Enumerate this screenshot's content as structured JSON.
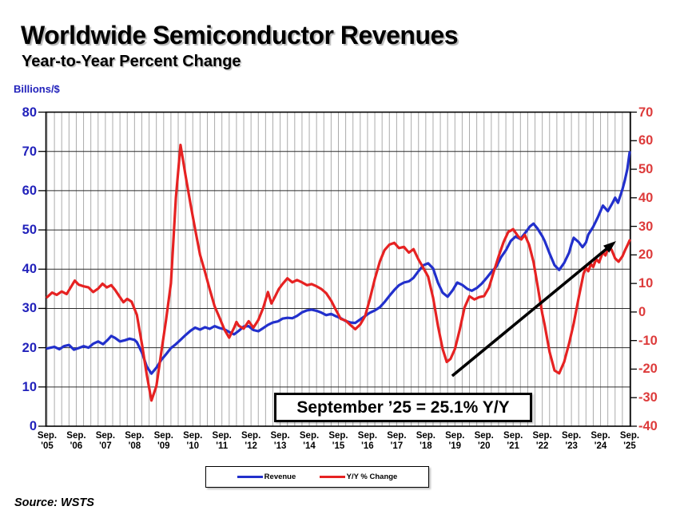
{
  "header": {
    "title": "Worldwide Semiconductor Revenues",
    "subtitle": "Year-to-Year Percent Change"
  },
  "footer": {
    "source": "Source: WSTS"
  },
  "legend": {
    "items": [
      {
        "label": "Revenue",
        "color": "#2230CC"
      },
      {
        "label": "Y/Y % Change",
        "color": "#E62222"
      }
    ]
  },
  "annotation": {
    "text": "September ’25 = 25.1% Y/Y"
  },
  "chart_data": {
    "type": "line",
    "title": "Worldwide Semiconductor Revenues",
    "subtitle": "Year-to-Year Percent Change",
    "grid": "quarterly vertical gray lines, horizontal black lines every 10",
    "left_axis": {
      "unit": "Billions/$",
      "range": [
        0,
        80
      ],
      "ticks": [
        0,
        10,
        20,
        30,
        40,
        50,
        60,
        70,
        80
      ],
      "color": "#2222BB"
    },
    "right_axis": {
      "range": [
        -40,
        70
      ],
      "ticks": [
        70,
        60,
        50,
        40,
        30,
        20,
        10,
        0,
        -10,
        -20,
        -30,
        -40
      ],
      "color": "#DD3B3B"
    },
    "x_axis": {
      "ticks": [
        {
          "m": "Sep.",
          "y": "'05"
        },
        {
          "m": "Sep.",
          "y": "'06"
        },
        {
          "m": "Sep.",
          "y": "'07"
        },
        {
          "m": "Sep.",
          "y": "'08"
        },
        {
          "m": "Sep.",
          "y": "'09"
        },
        {
          "m": "Sep.",
          "y": "'10"
        },
        {
          "m": "Sep.",
          "y": "'11"
        },
        {
          "m": "Sep.",
          "y": "'12"
        },
        {
          "m": "Sep.",
          "y": "'13"
        },
        {
          "m": "Sep.",
          "y": "'14"
        },
        {
          "m": "Sep.",
          "y": "'15"
        },
        {
          "m": "Sep.",
          "y": "'16"
        },
        {
          "m": "Sep.",
          "y": "'17"
        },
        {
          "m": "Sep.",
          "y": "'18"
        },
        {
          "m": "Sep.",
          "y": "'19"
        },
        {
          "m": "Sep.",
          "y": "'20"
        },
        {
          "m": "Sep.",
          "y": "'21"
        },
        {
          "m": "Sep.",
          "y": "'22"
        },
        {
          "m": "Sep.",
          "y": "'23"
        },
        {
          "m": "Sep.",
          "y": "'24"
        },
        {
          "m": "Sep.",
          "y": "'25"
        }
      ]
    },
    "series": [
      {
        "name": "Revenue",
        "axis": "left",
        "color": "#2230CC",
        "points": [
          [
            0,
            19.8
          ],
          [
            0.25,
            20.2
          ],
          [
            0.42,
            19.6
          ],
          [
            0.58,
            20.4
          ],
          [
            0.75,
            20.7
          ],
          [
            0.92,
            19.5
          ],
          [
            1.08,
            19.9
          ],
          [
            1.25,
            20.4
          ],
          [
            1.42,
            20.0
          ],
          [
            1.58,
            21.0
          ],
          [
            1.75,
            21.6
          ],
          [
            1.92,
            20.9
          ],
          [
            2.08,
            22.0
          ],
          [
            2.2,
            23.0
          ],
          [
            2.33,
            22.5
          ],
          [
            2.5,
            21.6
          ],
          [
            2.67,
            21.9
          ],
          [
            2.83,
            22.3
          ],
          [
            3.0,
            22.0
          ],
          [
            3.08,
            21.4
          ],
          [
            3.25,
            18.8
          ],
          [
            3.42,
            15.2
          ],
          [
            3.58,
            13.4
          ],
          [
            3.75,
            14.9
          ],
          [
            3.92,
            16.9
          ],
          [
            4.08,
            18.3
          ],
          [
            4.25,
            19.9
          ],
          [
            4.42,
            20.9
          ],
          [
            4.58,
            22.0
          ],
          [
            4.75,
            23.2
          ],
          [
            4.92,
            24.3
          ],
          [
            5.08,
            25.1
          ],
          [
            5.25,
            24.6
          ],
          [
            5.42,
            25.2
          ],
          [
            5.58,
            24.8
          ],
          [
            5.75,
            25.5
          ],
          [
            5.92,
            25.0
          ],
          [
            6.08,
            24.7
          ],
          [
            6.25,
            24.0
          ],
          [
            6.42,
            23.4
          ],
          [
            6.58,
            24.3
          ],
          [
            6.75,
            25.4
          ],
          [
            6.92,
            25.5
          ],
          [
            7.08,
            24.5
          ],
          [
            7.25,
            24.2
          ],
          [
            7.42,
            25.0
          ],
          [
            7.58,
            25.8
          ],
          [
            7.75,
            26.4
          ],
          [
            7.92,
            26.7
          ],
          [
            8.08,
            27.4
          ],
          [
            8.25,
            27.6
          ],
          [
            8.42,
            27.5
          ],
          [
            8.58,
            28.1
          ],
          [
            8.75,
            29.0
          ],
          [
            8.92,
            29.5
          ],
          [
            9.08,
            29.7
          ],
          [
            9.25,
            29.4
          ],
          [
            9.42,
            28.9
          ],
          [
            9.58,
            28.3
          ],
          [
            9.75,
            28.6
          ],
          [
            9.92,
            28.0
          ],
          [
            10.08,
            27.5
          ],
          [
            10.25,
            26.8
          ],
          [
            10.42,
            26.4
          ],
          [
            10.58,
            26.3
          ],
          [
            10.75,
            27.2
          ],
          [
            10.92,
            28.1
          ],
          [
            11.08,
            28.9
          ],
          [
            11.25,
            29.5
          ],
          [
            11.42,
            30.3
          ],
          [
            11.58,
            31.6
          ],
          [
            11.75,
            33.2
          ],
          [
            11.92,
            34.7
          ],
          [
            12.08,
            35.9
          ],
          [
            12.25,
            36.6
          ],
          [
            12.42,
            36.9
          ],
          [
            12.58,
            37.8
          ],
          [
            12.75,
            39.5
          ],
          [
            12.92,
            41.0
          ],
          [
            13.08,
            41.5
          ],
          [
            13.25,
            40.2
          ],
          [
            13.42,
            36.5
          ],
          [
            13.58,
            34.0
          ],
          [
            13.75,
            33.0
          ],
          [
            13.92,
            34.6
          ],
          [
            14.08,
            36.6
          ],
          [
            14.25,
            36.0
          ],
          [
            14.42,
            35.0
          ],
          [
            14.58,
            34.5
          ],
          [
            14.75,
            35.2
          ],
          [
            14.92,
            36.3
          ],
          [
            15.08,
            37.7
          ],
          [
            15.25,
            39.3
          ],
          [
            15.42,
            40.6
          ],
          [
            15.58,
            43.0
          ],
          [
            15.75,
            44.8
          ],
          [
            15.92,
            47.2
          ],
          [
            16.08,
            48.3
          ],
          [
            16.25,
            47.7
          ],
          [
            16.42,
            49.3
          ],
          [
            16.58,
            50.9
          ],
          [
            16.7,
            51.6
          ],
          [
            16.83,
            50.4
          ],
          [
            17.0,
            48.4
          ],
          [
            17.08,
            47.2
          ],
          [
            17.25,
            44.0
          ],
          [
            17.42,
            41.0
          ],
          [
            17.58,
            39.8
          ],
          [
            17.75,
            41.6
          ],
          [
            17.92,
            44.2
          ],
          [
            18.0,
            46.3
          ],
          [
            18.08,
            48.0
          ],
          [
            18.25,
            46.9
          ],
          [
            18.38,
            45.6
          ],
          [
            18.5,
            46.8
          ],
          [
            18.58,
            48.8
          ],
          [
            18.75,
            50.8
          ],
          [
            18.92,
            53.4
          ],
          [
            19.08,
            56.2
          ],
          [
            19.25,
            54.8
          ],
          [
            19.42,
            57.0
          ],
          [
            19.5,
            58.2
          ],
          [
            19.6,
            56.9
          ],
          [
            19.75,
            60.3
          ],
          [
            19.83,
            62.5
          ],
          [
            19.92,
            65.5
          ],
          [
            20,
            69.8
          ]
        ]
      },
      {
        "name": "Y/Y % Change",
        "axis": "right",
        "color": "#E62222",
        "points": [
          [
            0,
            5.2
          ],
          [
            0.17,
            6.8
          ],
          [
            0.33,
            6.0
          ],
          [
            0.5,
            7.2
          ],
          [
            0.67,
            6.3
          ],
          [
            0.83,
            9.0
          ],
          [
            0.95,
            11.0
          ],
          [
            1.08,
            9.6
          ],
          [
            1.25,
            9.0
          ],
          [
            1.42,
            8.6
          ],
          [
            1.58,
            7.0
          ],
          [
            1.75,
            8.2
          ],
          [
            1.9,
            9.9
          ],
          [
            2.05,
            8.6
          ],
          [
            2.2,
            9.4
          ],
          [
            2.33,
            7.8
          ],
          [
            2.5,
            5.2
          ],
          [
            2.62,
            3.4
          ],
          [
            2.75,
            4.6
          ],
          [
            2.9,
            3.6
          ],
          [
            3.08,
            -1.0
          ],
          [
            3.25,
            -11.0
          ],
          [
            3.42,
            -22.0
          ],
          [
            3.58,
            -31.0
          ],
          [
            3.75,
            -26.0
          ],
          [
            3.92,
            -14.0
          ],
          [
            4.08,
            -3.0
          ],
          [
            4.25,
            10.0
          ],
          [
            4.42,
            40.0
          ],
          [
            4.58,
            58.5
          ],
          [
            4.75,
            48.0
          ],
          [
            4.92,
            38.0
          ],
          [
            5.08,
            29.0
          ],
          [
            5.25,
            20.0
          ],
          [
            5.42,
            14.0
          ],
          [
            5.58,
            8.0
          ],
          [
            5.75,
            2.0
          ],
          [
            5.92,
            -2.0
          ],
          [
            6.08,
            -6.0
          ],
          [
            6.25,
            -9.0
          ],
          [
            6.42,
            -5.5
          ],
          [
            6.5,
            -3.5
          ],
          [
            6.58,
            -4.8
          ],
          [
            6.75,
            -5.8
          ],
          [
            6.92,
            -3.2
          ],
          [
            7.08,
            -5.5
          ],
          [
            7.25,
            -2.8
          ],
          [
            7.42,
            1.5
          ],
          [
            7.58,
            7.0
          ],
          [
            7.7,
            3.0
          ],
          [
            7.83,
            5.5
          ],
          [
            7.95,
            8.0
          ],
          [
            8.08,
            9.8
          ],
          [
            8.25,
            11.8
          ],
          [
            8.42,
            10.4
          ],
          [
            8.58,
            11.2
          ],
          [
            8.75,
            10.4
          ],
          [
            8.92,
            9.4
          ],
          [
            9.08,
            9.8
          ],
          [
            9.25,
            9.0
          ],
          [
            9.42,
            8.0
          ],
          [
            9.58,
            6.6
          ],
          [
            9.75,
            4.0
          ],
          [
            9.92,
            0.6
          ],
          [
            10.08,
            -2.4
          ],
          [
            10.25,
            -3.0
          ],
          [
            10.42,
            -4.6
          ],
          [
            10.58,
            -6.0
          ],
          [
            10.75,
            -4.4
          ],
          [
            10.92,
            -1.4
          ],
          [
            11.08,
            4.6
          ],
          [
            11.25,
            11.6
          ],
          [
            11.42,
            17.6
          ],
          [
            11.58,
            21.6
          ],
          [
            11.75,
            23.6
          ],
          [
            11.92,
            24.2
          ],
          [
            12.08,
            22.4
          ],
          [
            12.25,
            22.8
          ],
          [
            12.42,
            20.8
          ],
          [
            12.58,
            22.0
          ],
          [
            12.75,
            18.4
          ],
          [
            12.92,
            15.4
          ],
          [
            13.08,
            12.4
          ],
          [
            13.25,
            5.0
          ],
          [
            13.42,
            -5.0
          ],
          [
            13.58,
            -13.0
          ],
          [
            13.72,
            -17.5
          ],
          [
            13.85,
            -16.4
          ],
          [
            14.0,
            -13.0
          ],
          [
            14.17,
            -6.0
          ],
          [
            14.33,
            1.5
          ],
          [
            14.5,
            5.5
          ],
          [
            14.67,
            4.4
          ],
          [
            14.83,
            5.2
          ],
          [
            15.0,
            5.6
          ],
          [
            15.17,
            8.5
          ],
          [
            15.33,
            14.0
          ],
          [
            15.5,
            19.5
          ],
          [
            15.67,
            24.5
          ],
          [
            15.83,
            28.0
          ],
          [
            16.0,
            29.0
          ],
          [
            16.17,
            26.5
          ],
          [
            16.28,
            25.4
          ],
          [
            16.4,
            27.0
          ],
          [
            16.55,
            23.5
          ],
          [
            16.7,
            17.5
          ],
          [
            16.85,
            8.5
          ],
          [
            17.0,
            -0.5
          ],
          [
            17.08,
            -4.5
          ],
          [
            17.25,
            -14.0
          ],
          [
            17.42,
            -20.5
          ],
          [
            17.58,
            -21.5
          ],
          [
            17.75,
            -17.5
          ],
          [
            17.92,
            -11.0
          ],
          [
            18.08,
            -4.0
          ],
          [
            18.25,
            5.0
          ],
          [
            18.42,
            13.5
          ],
          [
            18.5,
            15.5
          ],
          [
            18.58,
            14.3
          ],
          [
            18.67,
            16.8
          ],
          [
            18.75,
            15.8
          ],
          [
            18.85,
            18.5
          ],
          [
            18.95,
            17.4
          ],
          [
            19.08,
            21.0
          ],
          [
            19.17,
            19.8
          ],
          [
            19.28,
            23.0
          ],
          [
            19.38,
            21.8
          ],
          [
            19.5,
            18.8
          ],
          [
            19.62,
            17.6
          ],
          [
            19.75,
            19.5
          ],
          [
            19.85,
            21.8
          ],
          [
            19.92,
            23.3
          ],
          [
            20,
            25.1
          ]
        ]
      }
    ],
    "arrow": {
      "x1f": 0.695,
      "y1f": 0.84,
      "x2f": 0.9754,
      "y2f": 0.4104
    },
    "grid_colors": {
      "vertical": "#ABABAB",
      "horizontal": "#2B2B2B",
      "border": "#000000"
    }
  }
}
